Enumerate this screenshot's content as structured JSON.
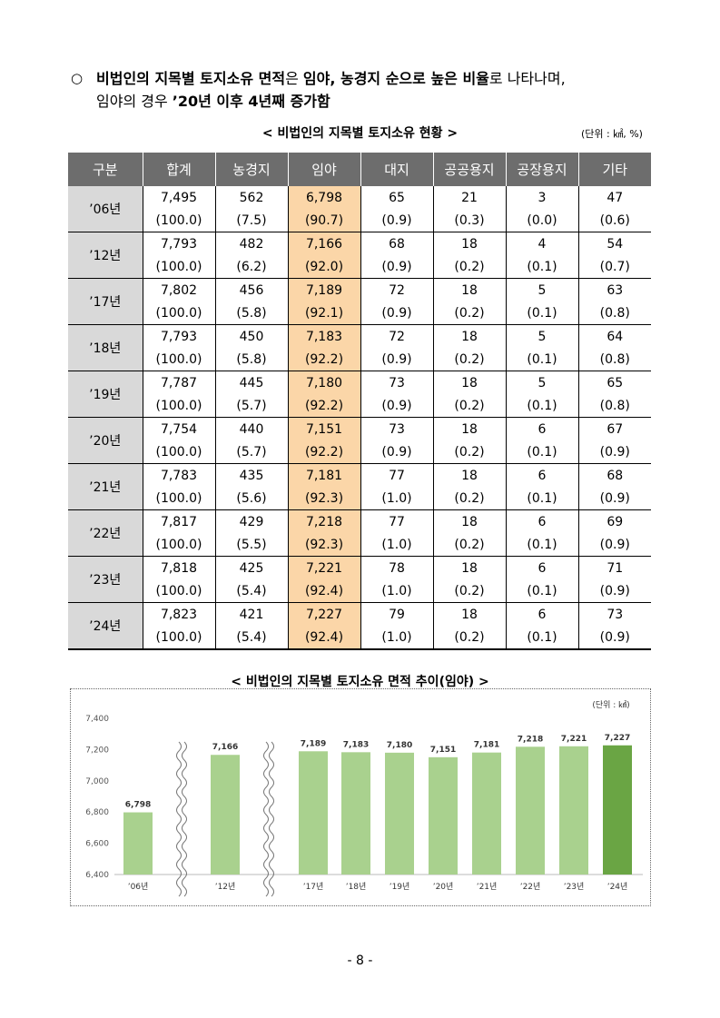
{
  "intro": {
    "bullet": "○",
    "line1_bold_a": "비법인의 지목별 토지소유 면적",
    "line1_plain_a": "은 ",
    "line1_bold_b": "임야, 농경지 순으로 높은 비율",
    "line1_plain_b": "로 나타나며,",
    "line2_plain": "임야의 경우 ",
    "line2_bold": "’20년 이후 4년째 증가함"
  },
  "table": {
    "title": "< 비법인의 지목별 토지소유 현황 >",
    "unit": "(단위 : ㎢, %)",
    "headers": [
      "구분",
      "합계",
      "농경지",
      "임야",
      "대지",
      "공공용지",
      "공장용지",
      "기타"
    ],
    "rows": [
      {
        "year": "’06년",
        "values": [
          "7,495",
          "562",
          "6,798",
          "65",
          "21",
          "3",
          "47"
        ],
        "shares": [
          "(100.0)",
          "(7.5)",
          "(90.7)",
          "(0.9)",
          "(0.3)",
          "(0.0)",
          "(0.6)"
        ]
      },
      {
        "year": "’12년",
        "values": [
          "7,793",
          "482",
          "7,166",
          "68",
          "18",
          "4",
          "54"
        ],
        "shares": [
          "(100.0)",
          "(6.2)",
          "(92.0)",
          "(0.9)",
          "(0.2)",
          "(0.1)",
          "(0.7)"
        ]
      },
      {
        "year": "’17년",
        "values": [
          "7,802",
          "456",
          "7,189",
          "72",
          "18",
          "5",
          "63"
        ],
        "shares": [
          "(100.0)",
          "(5.8)",
          "(92.1)",
          "(0.9)",
          "(0.2)",
          "(0.1)",
          "(0.8)"
        ]
      },
      {
        "year": "’18년",
        "values": [
          "7,793",
          "450",
          "7,183",
          "72",
          "18",
          "5",
          "64"
        ],
        "shares": [
          "(100.0)",
          "(5.8)",
          "(92.2)",
          "(0.9)",
          "(0.2)",
          "(0.1)",
          "(0.8)"
        ]
      },
      {
        "year": "’19년",
        "values": [
          "7,787",
          "445",
          "7,180",
          "73",
          "18",
          "5",
          "65"
        ],
        "shares": [
          "(100.0)",
          "(5.7)",
          "(92.2)",
          "(0.9)",
          "(0.2)",
          "(0.1)",
          "(0.8)"
        ]
      },
      {
        "year": "’20년",
        "values": [
          "7,754",
          "440",
          "7,151",
          "73",
          "18",
          "6",
          "67"
        ],
        "shares": [
          "(100.0)",
          "(5.7)",
          "(92.2)",
          "(0.9)",
          "(0.2)",
          "(0.1)",
          "(0.9)"
        ]
      },
      {
        "year": "’21년",
        "values": [
          "7,783",
          "435",
          "7,181",
          "77",
          "18",
          "6",
          "68"
        ],
        "shares": [
          "(100.0)",
          "(5.6)",
          "(92.3)",
          "(1.0)",
          "(0.2)",
          "(0.1)",
          "(0.9)"
        ]
      },
      {
        "year": "’22년",
        "values": [
          "7,817",
          "429",
          "7,218",
          "77",
          "18",
          "6",
          "69"
        ],
        "shares": [
          "(100.0)",
          "(5.5)",
          "(92.3)",
          "(1.0)",
          "(0.2)",
          "(0.1)",
          "(0.9)"
        ]
      },
      {
        "year": "’23년",
        "values": [
          "7,818",
          "425",
          "7,221",
          "78",
          "18",
          "6",
          "71"
        ],
        "shares": [
          "(100.0)",
          "(5.4)",
          "(92.4)",
          "(1.0)",
          "(0.2)",
          "(0.1)",
          "(0.9)"
        ]
      },
      {
        "year": "’24년",
        "values": [
          "7,823",
          "421",
          "7,227",
          "79",
          "18",
          "6",
          "73"
        ],
        "shares": [
          "(100.0)",
          "(5.4)",
          "(92.4)",
          "(1.0)",
          "(0.2)",
          "(0.1)",
          "(0.9)"
        ]
      }
    ],
    "highlight_color": "#fbd6a8",
    "header_color": "#6d6d6d",
    "year_cell_color": "#d9d9d9"
  },
  "chart_data": {
    "type": "bar",
    "title": "< 비법인의 지목별 토지소유 면적 추이(임야) >",
    "unit": "(단위 : ㎢)",
    "categories": [
      "’06년",
      "’12년",
      "’17년",
      "’18년",
      "’19년",
      "’20년",
      "’21년",
      "’22년",
      "’23년",
      "’24년"
    ],
    "values": [
      6798,
      7166,
      7189,
      7183,
      7180,
      7151,
      7181,
      7218,
      7221,
      7227
    ],
    "value_labels": [
      "6,798",
      "7,166",
      "7,189",
      "7,183",
      "7,180",
      "7,151",
      "7,181",
      "7,218",
      "7,221",
      "7,227"
    ],
    "ylim": [
      6400,
      7400
    ],
    "yticks": [
      "6,400",
      "6,600",
      "6,800",
      "7,000",
      "7,200",
      "7,400"
    ],
    "grid": false,
    "axis_breaks_after": [
      "’06년",
      "’12년"
    ],
    "bar_color": "#a9d18e",
    "highlight_bar_color": "#6aa544",
    "highlight_index": 9
  },
  "page_number": "- 8 -"
}
